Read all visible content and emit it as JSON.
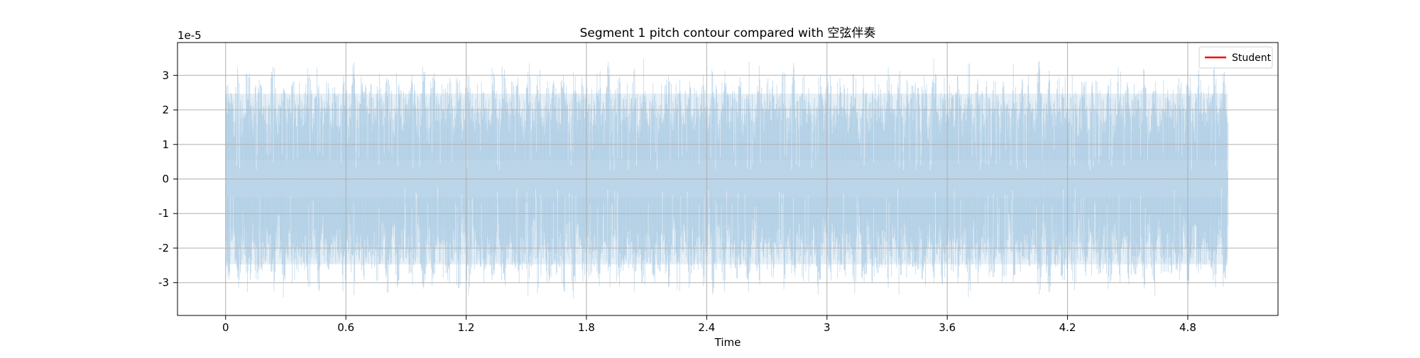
{
  "chart_data": {
    "type": "line",
    "title": "Segment 1 pitch contour compared with 空弦伴奏",
    "xlabel": "Time",
    "ylabel": "",
    "y_offset_label": "1e-5",
    "xlim": [
      -0.24,
      5.25
    ],
    "ylim": [
      -3.95,
      3.95
    ],
    "y_scale_exponent": -5,
    "x_ticks": [
      0,
      0.6,
      1.2,
      1.8,
      2.4,
      3,
      3.6,
      4.2,
      4.8
    ],
    "x_tick_labels": [
      "0",
      "0.6",
      "1.2",
      "1.8",
      "2.4",
      "3",
      "3.6",
      "4.2",
      "4.8"
    ],
    "y_ticks": [
      -3,
      -2,
      -1,
      0,
      1,
      2,
      3
    ],
    "y_tick_labels": [
      "-3",
      "-2",
      "-1",
      "0",
      "1",
      "2",
      "3"
    ],
    "grid": true,
    "legend_position": "top-right",
    "series": [
      {
        "name": "Student",
        "color": "#ff0000",
        "x": [],
        "y": []
      }
    ],
    "background_waveform": {
      "color": "#a6c8e2",
      "fill_color": "#d3e3ef",
      "x_range": [
        0,
        5.0
      ],
      "amplitude_peak": 3.6,
      "amplitude_typical": 2.6,
      "amplitude_inner": 0.9
    }
  }
}
